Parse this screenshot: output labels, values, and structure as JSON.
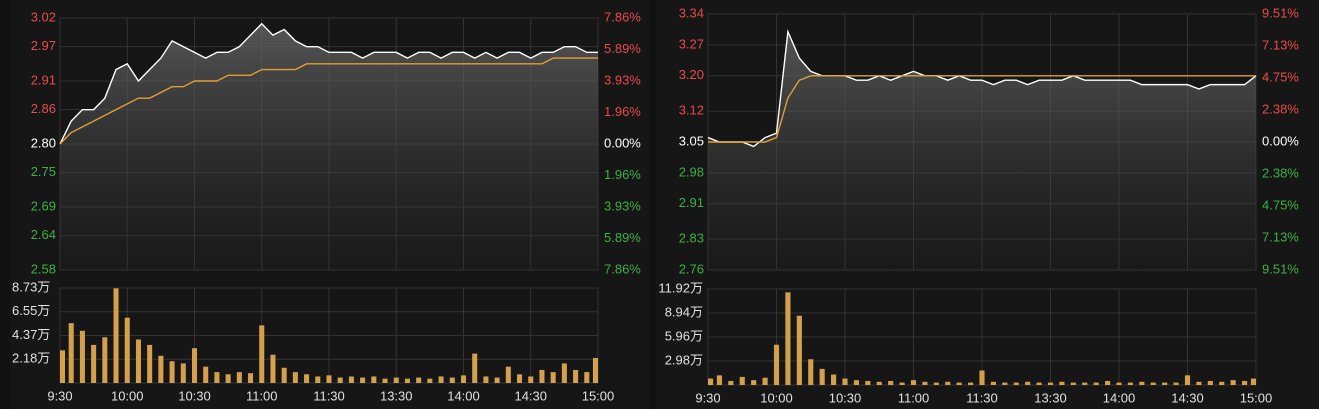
{
  "chart_data": [
    {
      "type": "line",
      "categories": [
        "9:30",
        null,
        null,
        null,
        null,
        null,
        "10:00",
        null,
        null,
        null,
        null,
        null,
        "10:30",
        null,
        null,
        null,
        null,
        null,
        "11:00",
        null,
        null,
        null,
        null,
        null,
        "11:30",
        null,
        null,
        null,
        null,
        null,
        "13:30",
        null,
        null,
        null,
        null,
        null,
        "14:00",
        null,
        null,
        null,
        null,
        null,
        "14:30",
        null,
        null,
        null,
        null,
        null,
        "15:00"
      ],
      "series": [
        {
          "color": "#ffffff",
          "values": [
            2.8,
            2.84,
            2.86,
            2.86,
            2.88,
            2.93,
            2.94,
            2.91,
            2.93,
            2.95,
            2.98,
            2.97,
            2.96,
            2.95,
            2.96,
            2.96,
            2.97,
            2.99,
            3.01,
            2.99,
            3.0,
            2.98,
            2.97,
            2.97,
            2.96,
            2.96,
            2.96,
            2.95,
            2.96,
            2.96,
            2.96,
            2.95,
            2.96,
            2.96,
            2.95,
            2.96,
            2.96,
            2.95,
            2.96,
            2.95,
            2.96,
            2.96,
            2.95,
            2.96,
            2.96,
            2.97,
            2.97,
            2.96,
            2.96
          ]
        },
        {
          "color": "#e0a030",
          "values": [
            2.8,
            2.82,
            2.83,
            2.84,
            2.85,
            2.86,
            2.87,
            2.88,
            2.88,
            2.89,
            2.9,
            2.9,
            2.91,
            2.91,
            2.91,
            2.92,
            2.92,
            2.92,
            2.93,
            2.93,
            2.93,
            2.93,
            2.94,
            2.94,
            2.94,
            2.94,
            2.94,
            2.94,
            2.94,
            2.94,
            2.94,
            2.94,
            2.94,
            2.94,
            2.94,
            2.94,
            2.94,
            2.94,
            2.94,
            2.94,
            2.94,
            2.94,
            2.94,
            2.94,
            2.95,
            2.95,
            2.95,
            2.95,
            2.95
          ]
        }
      ],
      "ylim": [
        2.58,
        3.02
      ],
      "yticks": [
        3.02,
        2.97,
        2.91,
        2.86,
        {
          "value": 2.8,
          "label": "2.80"
        },
        2.75,
        2.69,
        2.64,
        2.58
      ],
      "y2lim": [
        -7.86,
        7.86
      ],
      "y2ticks": [
        {
          "value": 7.86,
          "label": "7.86%"
        },
        {
          "value": 5.89,
          "label": "5.89%"
        },
        {
          "value": 3.93,
          "label": "3.93%"
        },
        {
          "value": 1.96,
          "label": "1.96%"
        },
        {
          "value": 0,
          "label": "0.00%"
        },
        {
          "value": -1.96,
          "label": "1.96%"
        },
        {
          "value": -3.93,
          "label": "3.93%"
        },
        {
          "value": -5.89,
          "label": "5.89%"
        },
        {
          "value": -7.86,
          "label": "7.86%"
        }
      ],
      "up_color": "#e84a4a",
      "down_color": "#3cb043",
      "flat_color": "#ffffff",
      "grid": true,
      "volume": {
        "type": "bar",
        "color": "#d4a04c",
        "values": [
          3.0,
          5.5,
          4.8,
          3.5,
          4.2,
          8.7,
          6.0,
          4.0,
          3.5,
          2.5,
          2.0,
          1.8,
          3.2,
          1.5,
          1.0,
          0.8,
          1.0,
          0.9,
          5.3,
          2.6,
          1.4,
          1.0,
          0.8,
          0.6,
          0.7,
          0.5,
          0.6,
          0.5,
          0.6,
          0.4,
          0.5,
          0.4,
          0.5,
          0.4,
          0.6,
          0.5,
          0.7,
          2.7,
          0.6,
          0.5,
          1.5,
          0.8,
          0.6,
          1.2,
          1.0,
          1.8,
          1.2,
          1.0,
          2.3
        ],
        "ylim": [
          0,
          8.73
        ],
        "yticks": [
          {
            "value": 8.73,
            "label": "8.73万"
          },
          {
            "value": 6.55,
            "label": "6.55万"
          },
          {
            "value": 4.37,
            "label": "4.37万"
          },
          {
            "value": 2.18,
            "label": "2.18万"
          }
        ]
      }
    },
    {
      "type": "line",
      "categories": [
        "9:30",
        null,
        null,
        null,
        null,
        null,
        "10:00",
        null,
        null,
        null,
        null,
        null,
        "10:30",
        null,
        null,
        null,
        null,
        null,
        "11:00",
        null,
        null,
        null,
        null,
        null,
        "11:30",
        null,
        null,
        null,
        null,
        null,
        "13:30",
        null,
        null,
        null,
        null,
        null,
        "14:00",
        null,
        null,
        null,
        null,
        null,
        "14:30",
        null,
        null,
        null,
        null,
        null,
        "15:00"
      ],
      "series": [
        {
          "color": "#ffffff",
          "values": [
            3.06,
            3.05,
            3.05,
            3.05,
            3.04,
            3.06,
            3.07,
            3.3,
            3.24,
            3.21,
            3.2,
            3.2,
            3.2,
            3.19,
            3.19,
            3.2,
            3.19,
            3.2,
            3.21,
            3.2,
            3.2,
            3.19,
            3.2,
            3.19,
            3.19,
            3.18,
            3.19,
            3.19,
            3.18,
            3.19,
            3.19,
            3.19,
            3.2,
            3.19,
            3.19,
            3.19,
            3.19,
            3.19,
            3.18,
            3.18,
            3.18,
            3.18,
            3.18,
            3.17,
            3.18,
            3.18,
            3.18,
            3.18,
            3.2
          ]
        },
        {
          "color": "#e0a030",
          "values": [
            3.05,
            3.05,
            3.05,
            3.05,
            3.05,
            3.05,
            3.06,
            3.15,
            3.19,
            3.2,
            3.2,
            3.2,
            3.2,
            3.2,
            3.2,
            3.2,
            3.2,
            3.2,
            3.2,
            3.2,
            3.2,
            3.2,
            3.2,
            3.2,
            3.2,
            3.2,
            3.2,
            3.2,
            3.2,
            3.2,
            3.2,
            3.2,
            3.2,
            3.2,
            3.2,
            3.2,
            3.2,
            3.2,
            3.2,
            3.2,
            3.2,
            3.2,
            3.2,
            3.2,
            3.2,
            3.2,
            3.2,
            3.2,
            3.2
          ]
        }
      ],
      "ylim": [
        2.76,
        3.34
      ],
      "yticks": [
        3.34,
        3.27,
        {
          "value": 3.2,
          "label": "3.20"
        },
        3.12,
        3.05,
        2.98,
        2.91,
        2.83,
        2.76
      ],
      "y2lim": [
        -9.51,
        9.51
      ],
      "y2ticks": [
        {
          "value": 9.51,
          "label": "9.51%"
        },
        {
          "value": 7.13,
          "label": "7.13%"
        },
        {
          "value": 4.75,
          "label": "4.75%"
        },
        {
          "value": 2.38,
          "label": "2.38%"
        },
        {
          "value": 0,
          "label": "0.00%"
        },
        {
          "value": -2.38,
          "label": "2.38%"
        },
        {
          "value": -4.75,
          "label": "4.75%"
        },
        {
          "value": -7.13,
          "label": "7.13%"
        },
        {
          "value": -9.51,
          "label": "9.51%"
        }
      ],
      "up_color": "#e84a4a",
      "down_color": "#3cb043",
      "flat_color": "#ffffff",
      "grid": true,
      "volume": {
        "type": "bar",
        "color": "#d4a04c",
        "values": [
          0.8,
          1.2,
          0.5,
          1.0,
          0.6,
          0.9,
          5.0,
          11.5,
          8.6,
          3.2,
          2.0,
          1.3,
          0.8,
          0.6,
          0.5,
          0.4,
          0.5,
          0.3,
          0.6,
          0.4,
          0.3,
          0.4,
          0.3,
          0.3,
          1.8,
          0.4,
          0.3,
          0.3,
          0.4,
          0.3,
          0.3,
          0.4,
          0.3,
          0.3,
          0.3,
          0.5,
          0.3,
          0.3,
          0.4,
          0.3,
          0.3,
          0.3,
          1.2,
          0.4,
          0.5,
          0.4,
          0.6,
          0.5,
          0.8
        ],
        "ylim": [
          0,
          11.92
        ],
        "yticks": [
          {
            "value": 11.92,
            "label": "11.92万"
          },
          {
            "value": 8.94,
            "label": "8.94万"
          },
          {
            "value": 5.96,
            "label": "5.96万"
          },
          {
            "value": 2.98,
            "label": "2.98万"
          }
        ]
      }
    }
  ]
}
